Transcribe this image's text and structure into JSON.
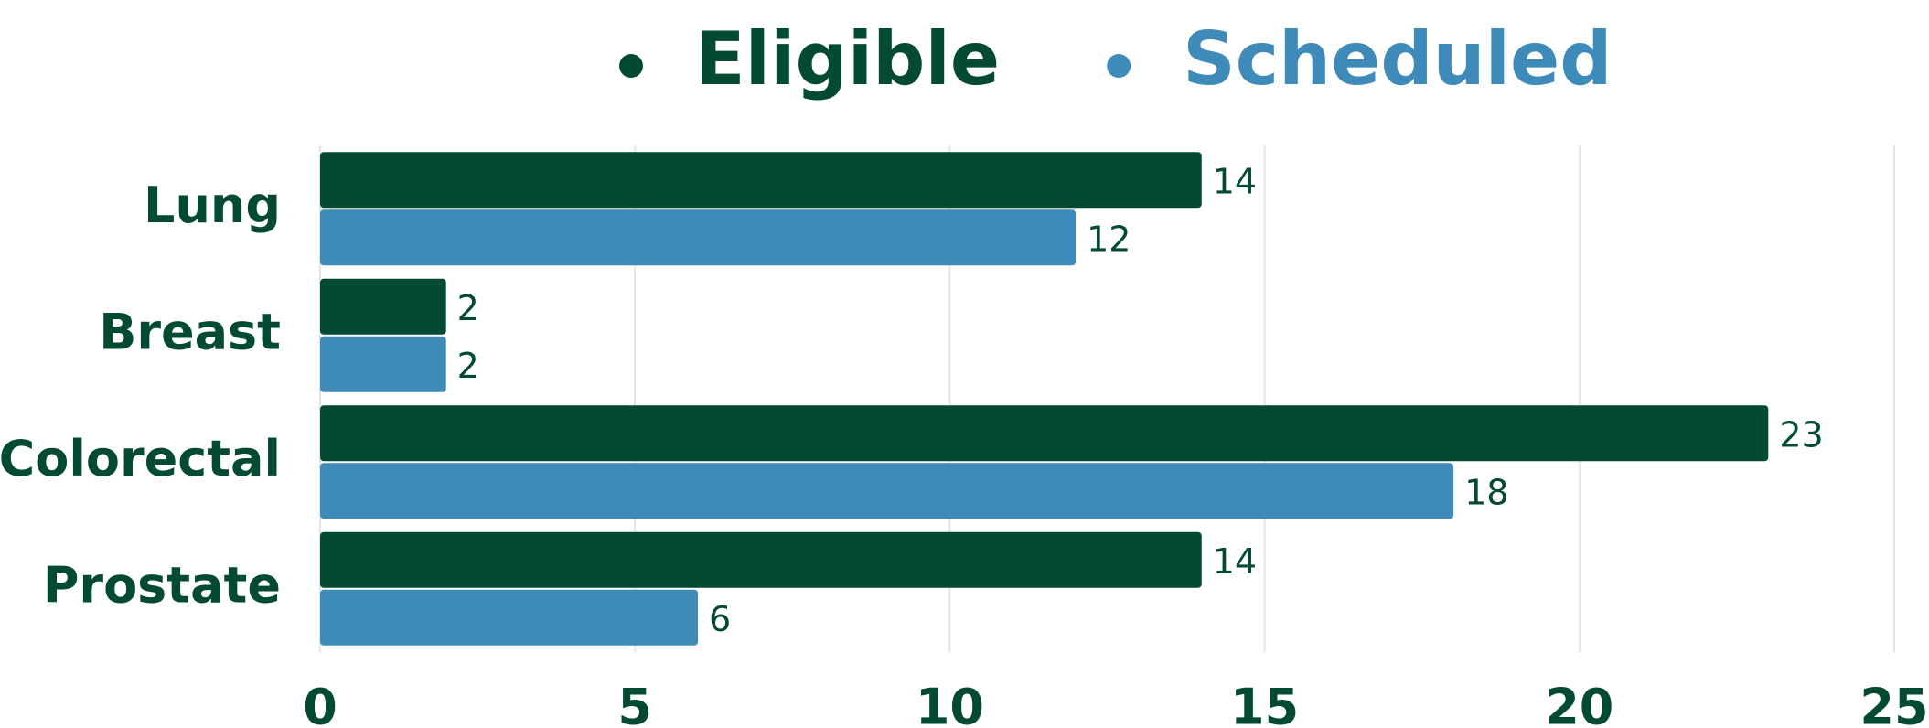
{
  "chart_data": {
    "type": "bar",
    "orientation": "horizontal",
    "categories": [
      "Lung",
      "Breast",
      "Colorectal",
      "Prostate"
    ],
    "series": [
      {
        "name": "Eligible",
        "color": "#034a35",
        "values": [
          14,
          2,
          23,
          14
        ]
      },
      {
        "name": "Scheduled",
        "color": "#3e8bba",
        "values": [
          12,
          2,
          18,
          6
        ]
      }
    ],
    "xlim": [
      0,
      25
    ],
    "xticks": [
      0,
      5,
      10,
      15,
      20,
      25
    ],
    "grid": true,
    "legend": "top"
  }
}
